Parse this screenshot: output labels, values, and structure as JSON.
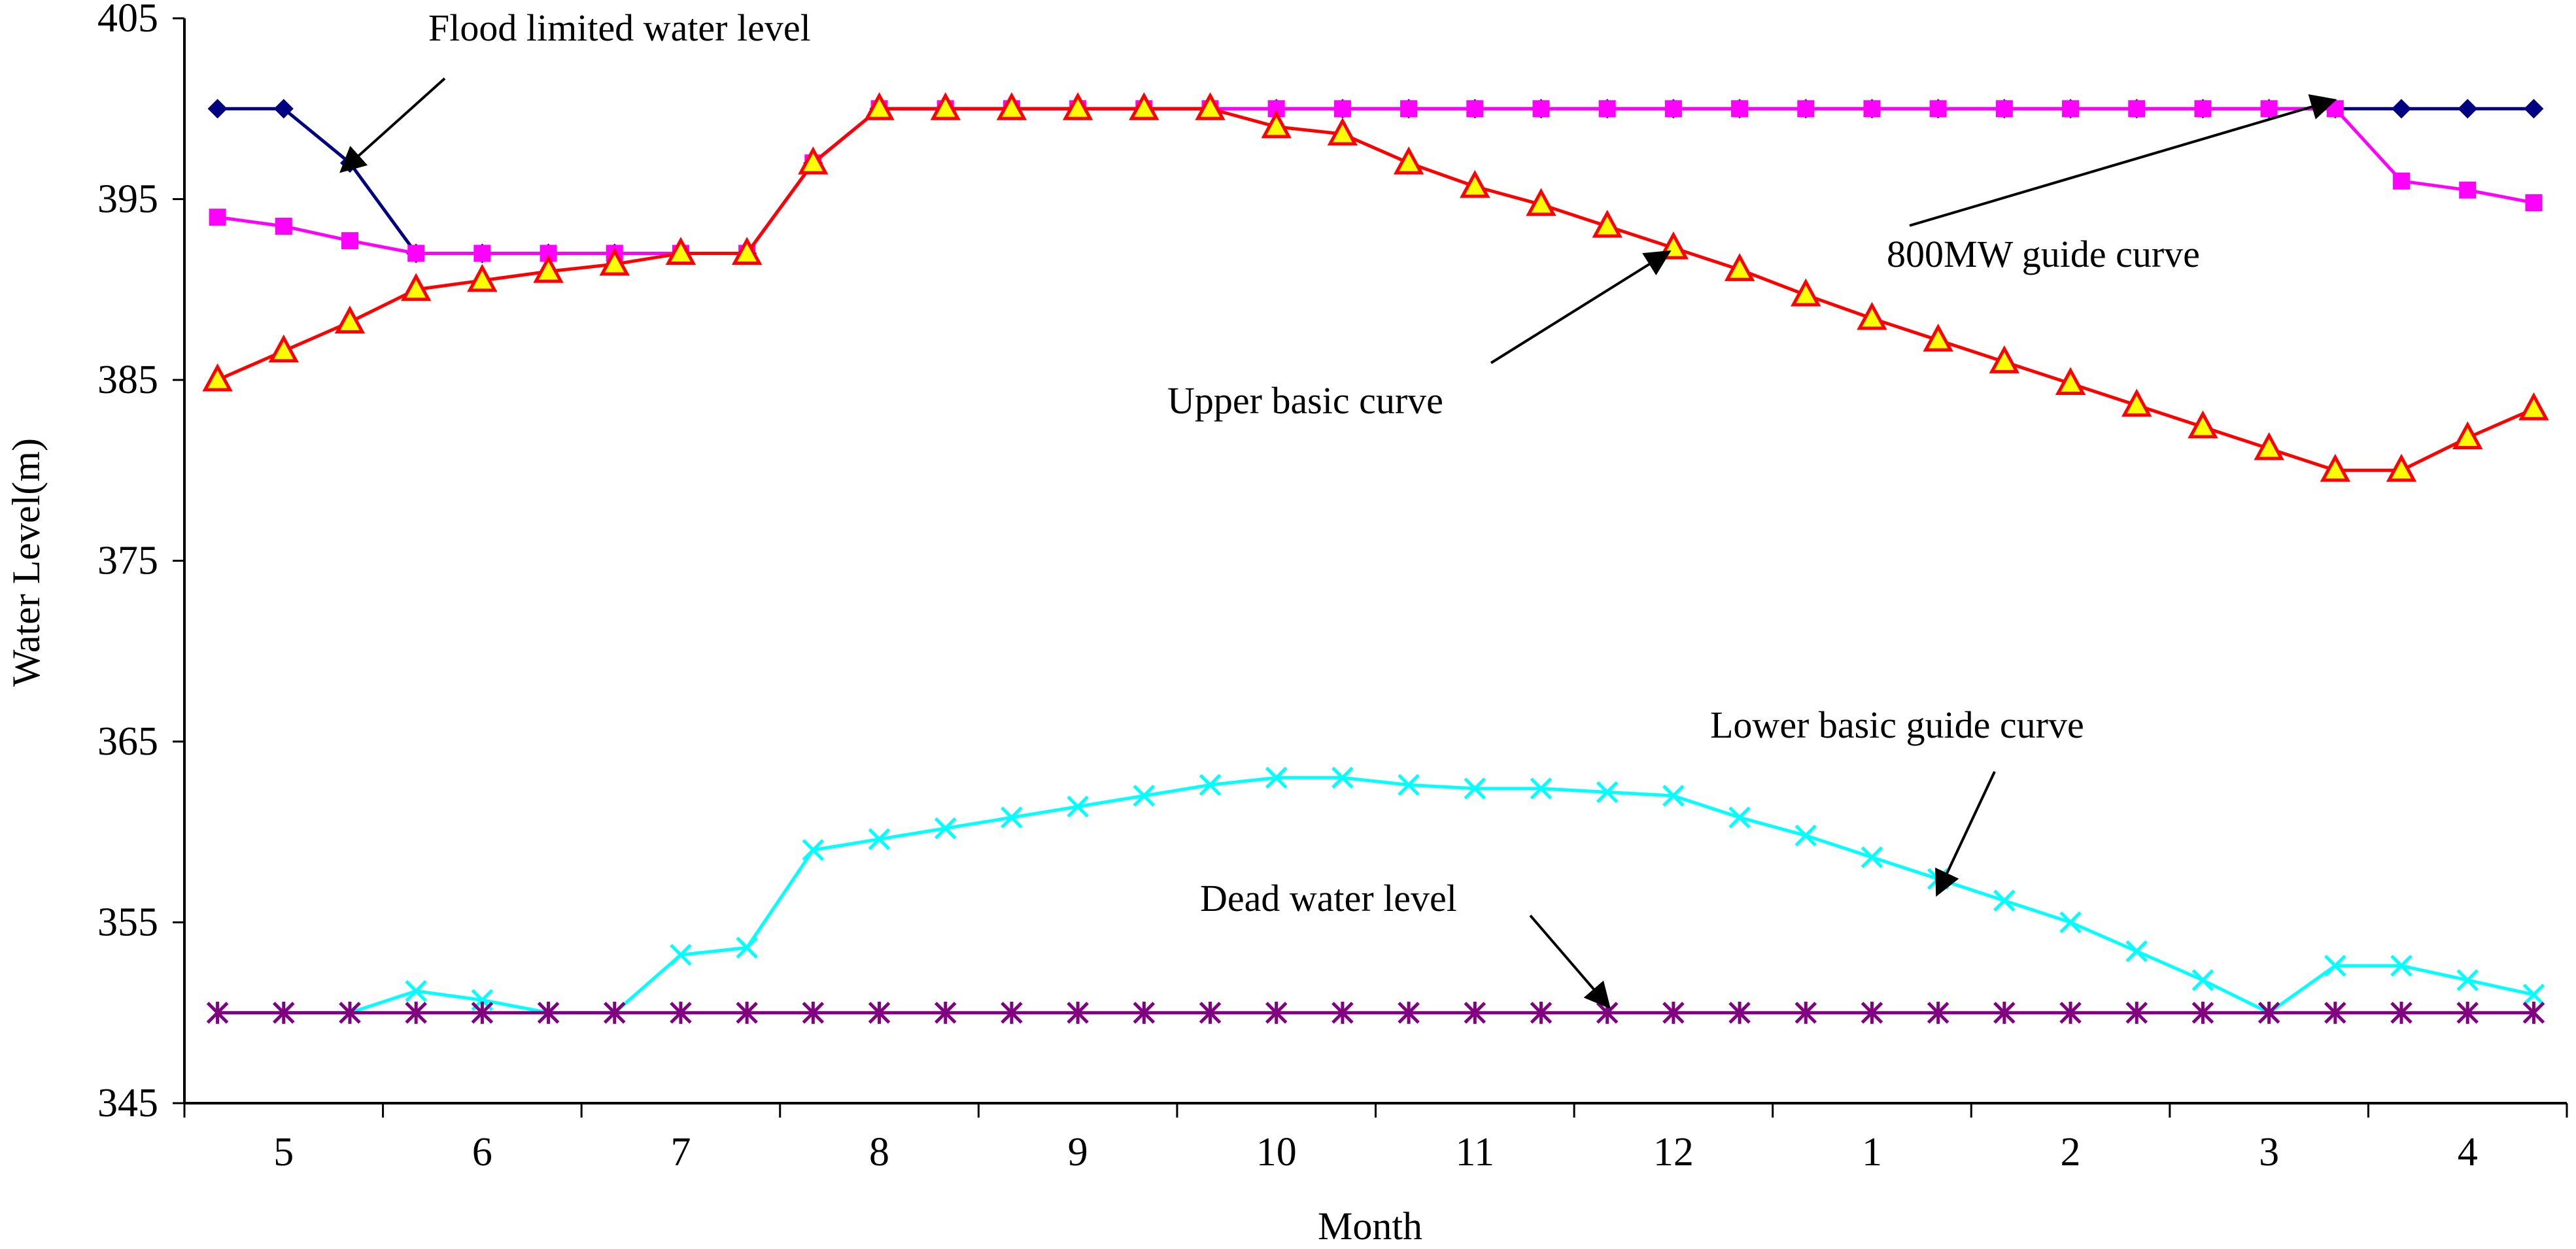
{
  "chart_data": {
    "type": "line",
    "title": "",
    "xlabel": "Month",
    "ylabel": "Water Level(m)",
    "ylim": [
      345,
      405
    ],
    "yticks": [
      "345",
      "355",
      "365",
      "375",
      "385",
      "395",
      "405"
    ],
    "month_labels": [
      "5",
      "6",
      "7",
      "8",
      "9",
      "10",
      "11",
      "12",
      "1",
      "2",
      "3",
      "4"
    ],
    "n_points": 36,
    "series": [
      {
        "name": "Flood limited water level",
        "color": "#000080",
        "marker": "diamond",
        "values": [
          400,
          400,
          397,
          392,
          392,
          392,
          392,
          392,
          392,
          397,
          400,
          400,
          400,
          400,
          400,
          400,
          400,
          400,
          400,
          400,
          400,
          400,
          400,
          400,
          400,
          400,
          400,
          400,
          400,
          400,
          400,
          400,
          400,
          400,
          400,
          400
        ]
      },
      {
        "name": "800MW guide curve",
        "color": "#ff00ff",
        "marker": "square",
        "values": [
          394,
          393.5,
          392.7,
          392,
          392,
          392,
          392,
          392,
          392,
          397,
          400,
          400,
          400,
          400,
          400,
          400,
          400,
          400,
          400,
          400,
          400,
          400,
          400,
          400,
          400,
          400,
          400,
          400,
          400,
          400,
          400,
          400,
          400,
          396,
          395.5,
          394.8
        ]
      },
      {
        "name": "Upper basic curve",
        "color": "#ff0000",
        "marker": "triangle",
        "values": [
          385,
          386.6,
          388.2,
          390,
          390.5,
          391,
          391.4,
          392,
          392,
          397,
          400,
          400,
          400,
          400,
          400,
          400,
          399,
          398.6,
          397,
          395.7,
          394.7,
          393.5,
          392.3,
          391.1,
          389.7,
          388.4,
          387.2,
          386,
          384.8,
          383.6,
          382.4,
          381.2,
          380,
          380,
          381.8,
          383.4
        ]
      },
      {
        "name": "Lower basic guide curve",
        "color": "#00ffff",
        "marker": "x",
        "values": [
          350,
          350,
          350,
          351.2,
          350.7,
          350,
          350,
          353.2,
          353.6,
          359,
          359.6,
          360.2,
          360.8,
          361.4,
          362,
          362.6,
          363,
          363,
          362.6,
          362.4,
          362.4,
          362.2,
          362,
          360.8,
          359.8,
          358.6,
          357.4,
          356.2,
          355,
          353.4,
          351.8,
          350,
          352.6,
          352.6,
          351.8,
          351
        ]
      },
      {
        "name": "Dead water level",
        "color": "#800080",
        "marker": "asterisk",
        "values": [
          350,
          350,
          350,
          350,
          350,
          350,
          350,
          350,
          350,
          350,
          350,
          350,
          350,
          350,
          350,
          350,
          350,
          350,
          350,
          350,
          350,
          350,
          350,
          350,
          350,
          350,
          350,
          350,
          350,
          350,
          350,
          350,
          350,
          350,
          350,
          350
        ]
      }
    ],
    "annotations": [
      {
        "text": "Flood limited water level",
        "target_index": 2,
        "target_value": 397
      },
      {
        "text": "800MW guide curve",
        "target_index": 32,
        "target_value": 400
      },
      {
        "text": "Upper basic curve",
        "target_index": 22,
        "target_value": 392.3
      },
      {
        "text": "Lower basic guide curve",
        "target_index": 26,
        "target_value": 357.4
      },
      {
        "text": "Dead water level",
        "target_index": 21,
        "target_value": 350
      }
    ]
  }
}
